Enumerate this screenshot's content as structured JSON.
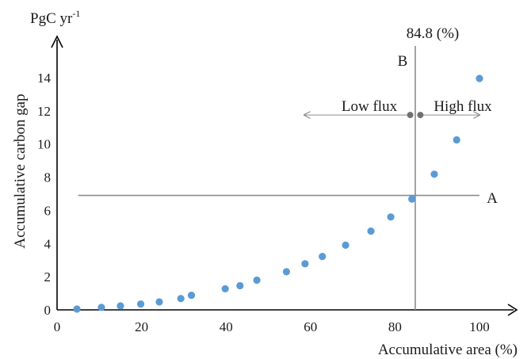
{
  "chart_data": {
    "type": "scatter",
    "xlabel": "Accumulative area (%)",
    "ylabel": "Accumulative carbon gap",
    "unit_label": "PgC yr",
    "unit_superscript": "-1",
    "xlim": [
      0,
      110
    ],
    "ylim": [
      0,
      16
    ],
    "x_ticks": [
      "0",
      "20",
      "40",
      "60",
      "80",
      "100"
    ],
    "y_ticks": [
      "0",
      "2",
      "4",
      "6",
      "8",
      "10",
      "12",
      "14"
    ],
    "grid": false,
    "point_color": "#5b9bd5",
    "line_color": "#8c8c8c",
    "points": [
      {
        "x": 4.7,
        "y": 0.05
      },
      {
        "x": 10.5,
        "y": 0.15
      },
      {
        "x": 15,
        "y": 0.24
      },
      {
        "x": 19.8,
        "y": 0.35
      },
      {
        "x": 24.2,
        "y": 0.48
      },
      {
        "x": 29.3,
        "y": 0.68
      },
      {
        "x": 31.8,
        "y": 0.88
      },
      {
        "x": 39.8,
        "y": 1.27
      },
      {
        "x": 43.3,
        "y": 1.46
      },
      {
        "x": 47.3,
        "y": 1.79
      },
      {
        "x": 54.3,
        "y": 2.3
      },
      {
        "x": 58.7,
        "y": 2.78
      },
      {
        "x": 62.8,
        "y": 3.22
      },
      {
        "x": 68.3,
        "y": 3.9
      },
      {
        "x": 74.3,
        "y": 4.75
      },
      {
        "x": 79,
        "y": 5.6
      },
      {
        "x": 84,
        "y": 6.68
      },
      {
        "x": 89.3,
        "y": 8.18
      },
      {
        "x": 94.6,
        "y": 10.25
      },
      {
        "x": 100,
        "y": 13.95
      }
    ],
    "annotations": {
      "vline": {
        "x": 84.8,
        "label": "84.8 (%)",
        "tag": "B"
      },
      "hline": {
        "y": 6.9,
        "x_start": 5,
        "x_end": 100,
        "tag": "A"
      },
      "low_flux": {
        "label": "Low flux",
        "y": 11.75,
        "x_from": 83.6,
        "x_to": 58.5
      },
      "high_flux": {
        "label": "High flux",
        "y": 11.75,
        "x_from": 86,
        "x_to": 100
      }
    }
  }
}
